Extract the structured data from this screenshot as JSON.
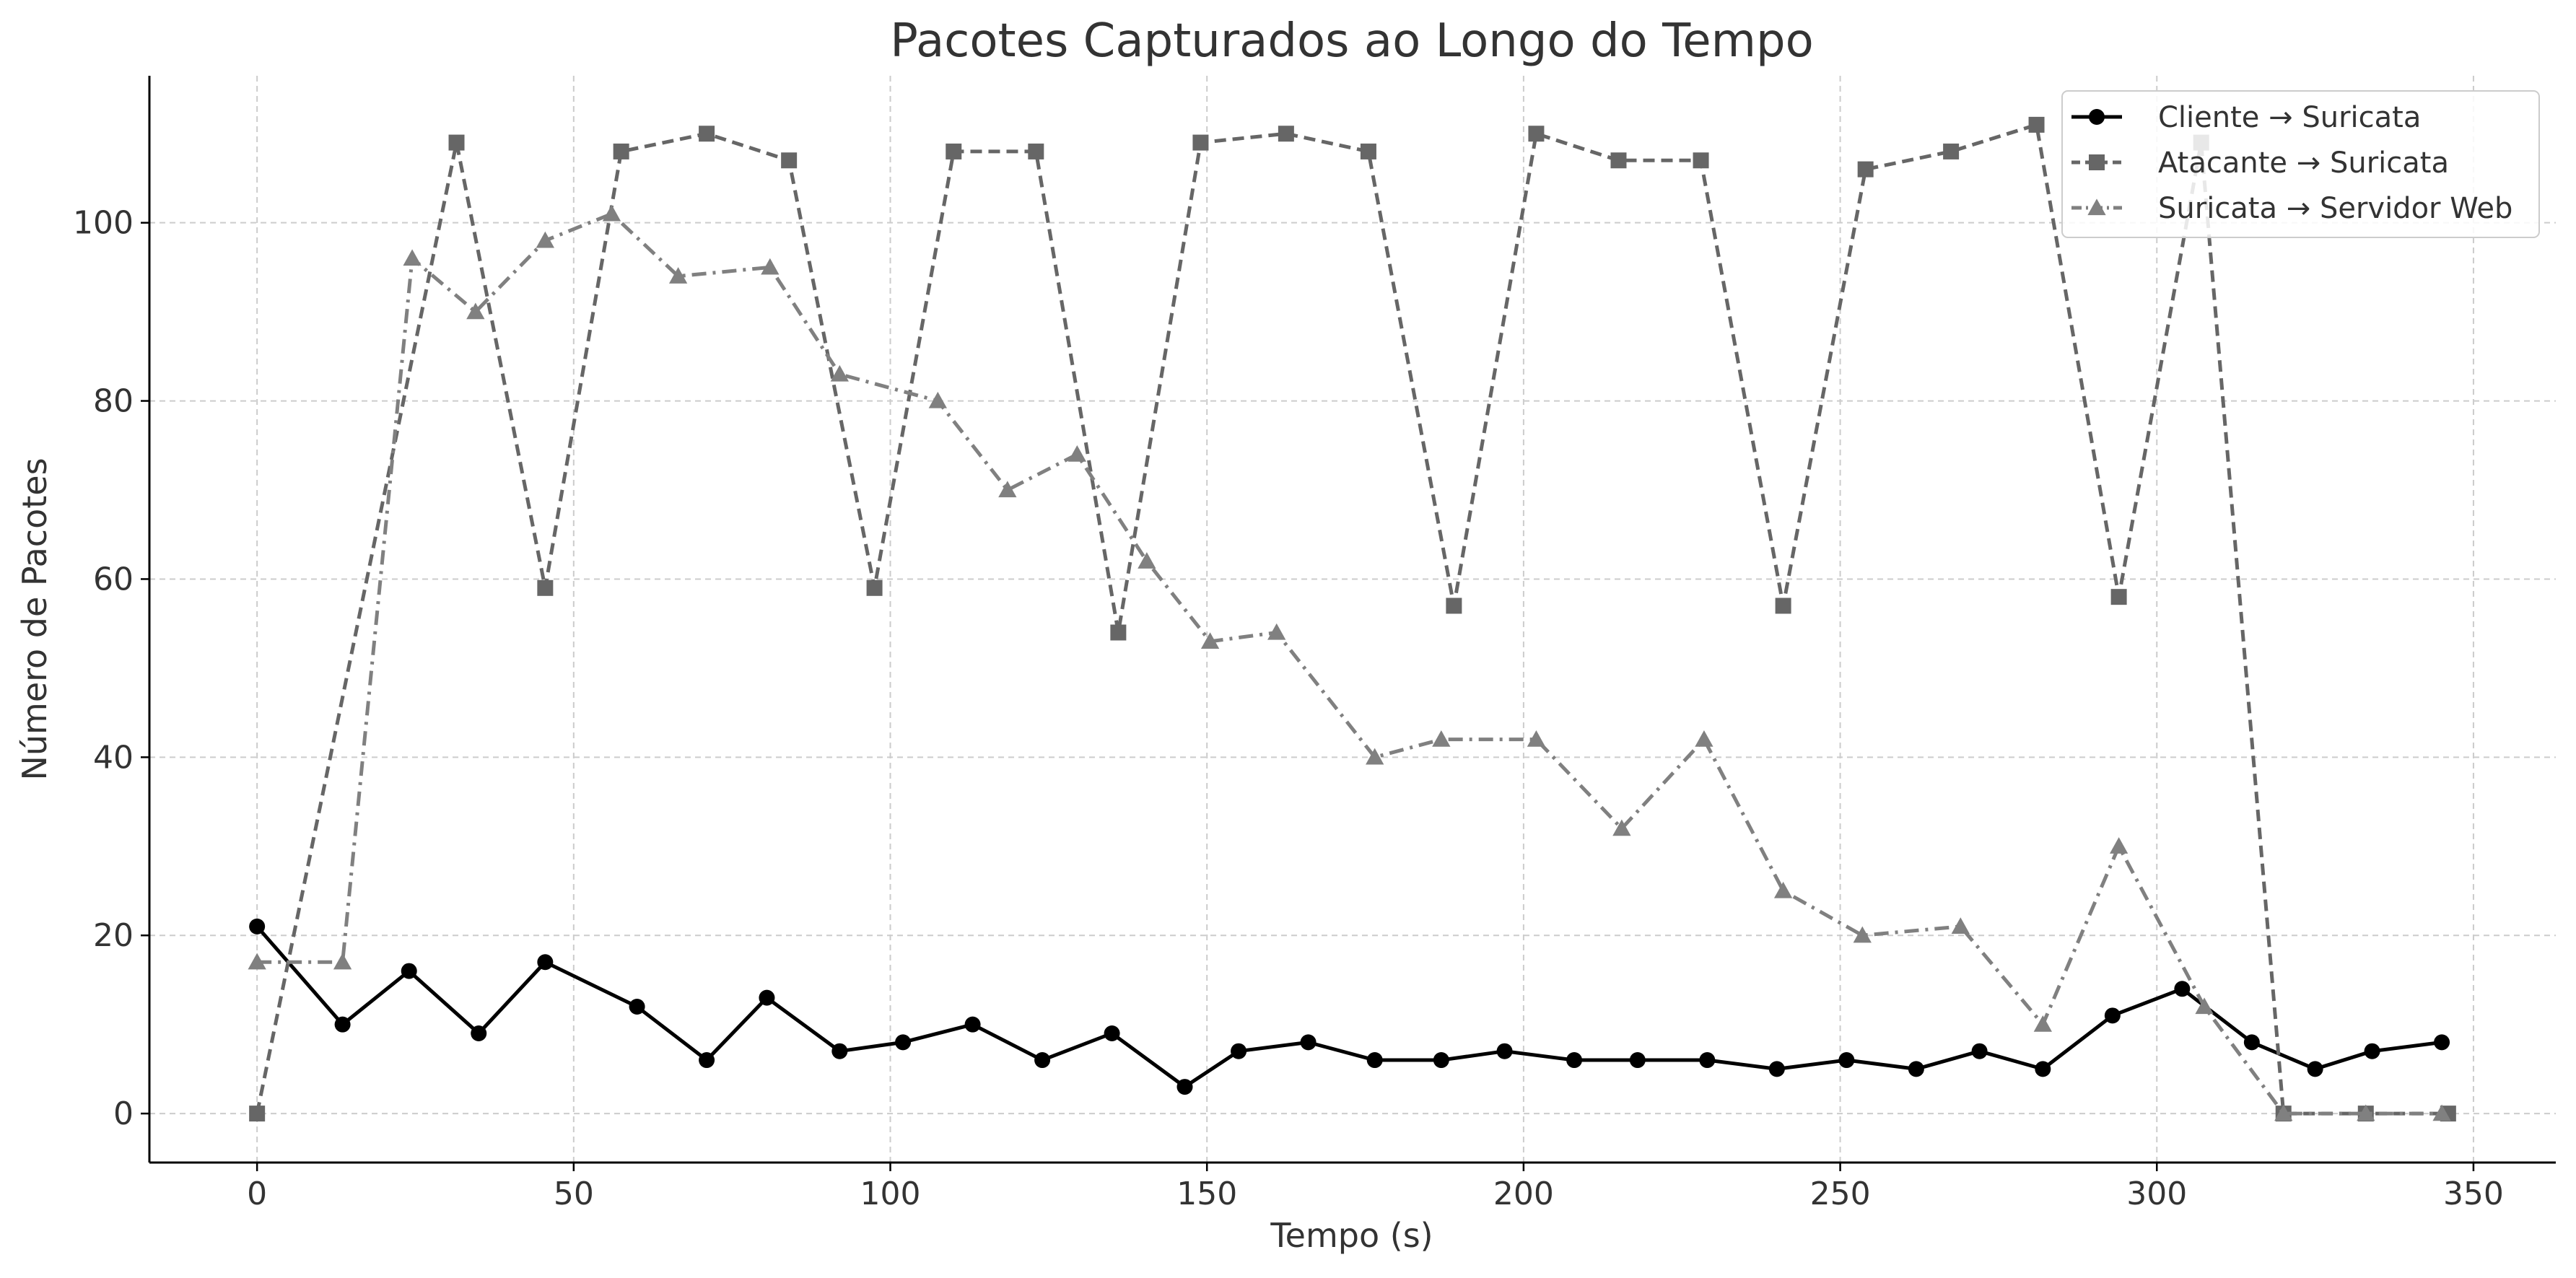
{
  "chart_data": {
    "type": "line",
    "title": "Pacotes Capturados ao Longo do Tempo",
    "xlabel": "Tempo (s)",
    "ylabel": "Número de Pacotes",
    "xlim": [
      -17,
      363
    ],
    "ylim": [
      -5.5,
      116.5
    ],
    "xticks": [
      0,
      50,
      100,
      150,
      200,
      250,
      300,
      350
    ],
    "yticks": [
      0,
      20,
      40,
      60,
      80,
      100
    ],
    "grid": true,
    "legend_position": "top-right",
    "series": [
      {
        "name": "Cliente → Suricata",
        "color": "#000000",
        "line_style": "solid",
        "marker": "circle",
        "x": [
          0,
          13.5,
          24,
          35,
          45.5,
          60,
          71,
          80.5,
          92,
          102,
          113,
          124,
          135,
          146.5,
          155,
          166,
          176.5,
          187,
          197,
          208,
          218,
          229,
          240,
          251,
          262,
          272,
          282,
          293,
          304,
          315,
          325,
          334,
          345
        ],
        "y": [
          21,
          10,
          16,
          9,
          17,
          12,
          6,
          13,
          7,
          8,
          10,
          6,
          9,
          3,
          7,
          8,
          6,
          6,
          7,
          6,
          6,
          6,
          5,
          6,
          5,
          7,
          5,
          11,
          14,
          8,
          5,
          7,
          8
        ]
      },
      {
        "name": "Atacante → Suricata",
        "color": "#666666",
        "line_style": "dashed",
        "marker": "square",
        "x": [
          0,
          31.5,
          45.5,
          57.5,
          71,
          84,
          97.5,
          110,
          123,
          136,
          149,
          162.5,
          175.5,
          189,
          202,
          215,
          228,
          241,
          254,
          267.5,
          281,
          294,
          307,
          320,
          333,
          346
        ],
        "y": [
          0,
          109,
          59,
          108,
          110,
          107,
          59,
          108,
          108,
          54,
          109,
          110,
          108,
          57,
          110,
          107,
          107,
          57,
          106,
          108,
          111,
          58,
          109,
          0,
          0,
          0
        ]
      },
      {
        "name": "Suricata → Servidor Web",
        "color": "#808080",
        "line_style": "dashdot",
        "marker": "triangle",
        "x": [
          0,
          13.5,
          24.5,
          34.5,
          45.5,
          56,
          66.5,
          81,
          92,
          107.5,
          118.5,
          129.5,
          140.5,
          150.5,
          161,
          176.5,
          187,
          202,
          215.5,
          228.5,
          241,
          253.5,
          269,
          282,
          294,
          307.5,
          320,
          333,
          345
        ],
        "y": [
          17,
          17,
          96,
          90,
          98,
          101,
          94,
          95,
          83,
          80,
          70,
          74,
          62,
          53,
          54,
          40,
          42,
          42,
          32,
          42,
          25,
          20,
          21,
          10,
          30,
          12,
          0,
          0,
          0
        ]
      }
    ]
  }
}
